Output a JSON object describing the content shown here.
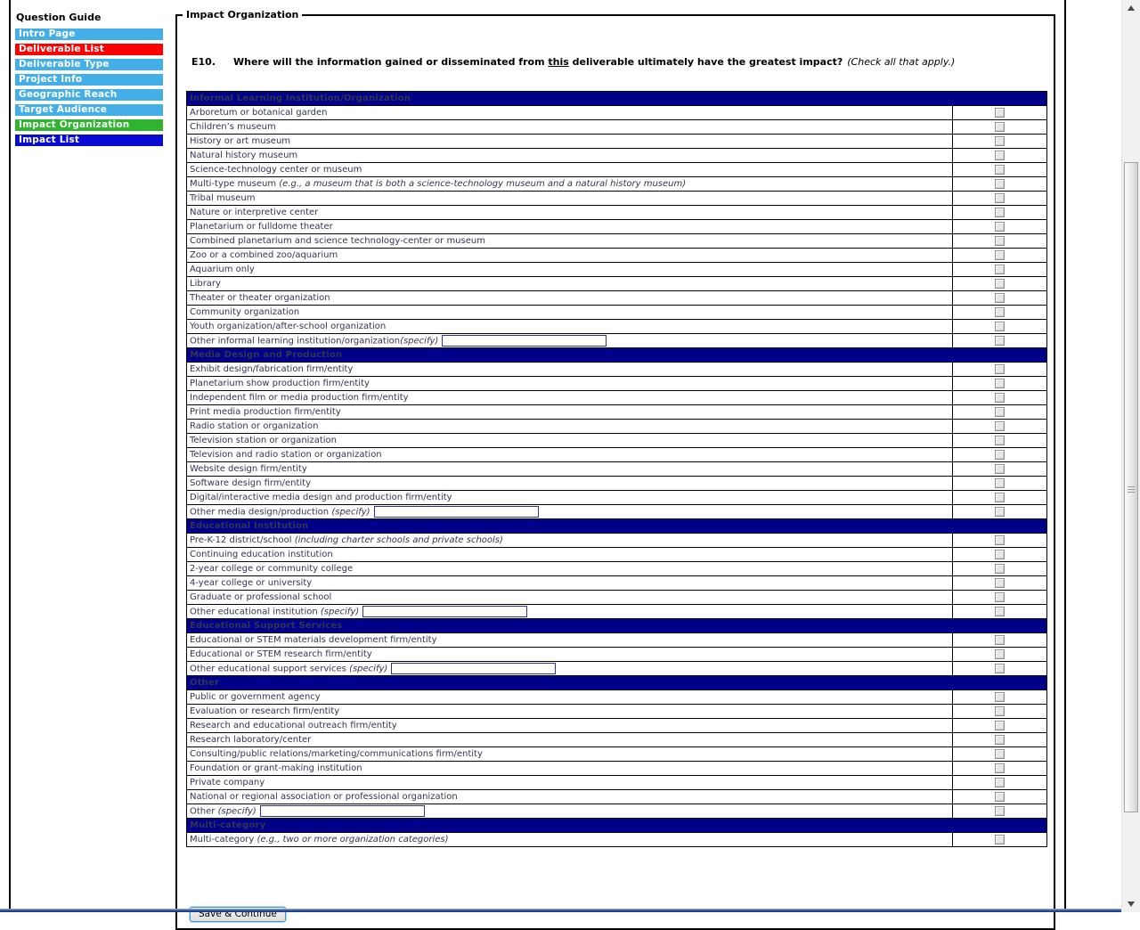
{
  "sidebar": {
    "title": "Question Guide",
    "items": [
      {
        "label": "Intro Page",
        "color": "#44AEE9"
      },
      {
        "label": "Deliverable List",
        "color": "#FF0000"
      },
      {
        "label": "Deliverable Type",
        "color": "#44AEE9"
      },
      {
        "label": "Project Info",
        "color": "#44AEE9"
      },
      {
        "label": "Geographic Reach",
        "color": "#44AEE9"
      },
      {
        "label": "Target Audience",
        "color": "#44AEE9"
      },
      {
        "label": "Impact Organization",
        "color": "#2EB42E"
      },
      {
        "label": "Impact List",
        "color": "#0A0AD5"
      }
    ]
  },
  "main": {
    "legend": "Impact Organization",
    "question": {
      "number": "E10.",
      "text_before": "Where will the information gained or disseminated from ",
      "underlined": "this",
      "text_after": " deliverable ultimately have the greatest impact?",
      "note": "(Check all that apply.)"
    },
    "table": {
      "header_color": "#00008B",
      "sections": [
        {
          "header": "Informal Learning Institution/Organization",
          "rows": [
            {
              "label": "Arboretum or botanical garden"
            },
            {
              "label": "Children’s museum"
            },
            {
              "label": "History or art museum"
            },
            {
              "label": "Natural history museum"
            },
            {
              "label": "Science-technology center or museum"
            },
            {
              "label": "Multi-type museum ",
              "note": "(e.g., a museum that is both a science-technology museum and a natural history museum)"
            },
            {
              "label": "Tribal museum"
            },
            {
              "label": "Nature or interpretive center"
            },
            {
              "label": "Planetarium or fulldome theater"
            },
            {
              "label": "Combined planetarium and science technology-center or museum"
            },
            {
              "label": "Zoo or a combined zoo/aquarium"
            },
            {
              "label": "Aquarium only"
            },
            {
              "label": "Library"
            },
            {
              "label": "Theater or theater organization"
            },
            {
              "label": "Community organization"
            },
            {
              "label": "Youth organization/after-school organization"
            },
            {
              "label": "Other informal learning institution/organization",
              "note": "(specify)",
              "input": true
            }
          ]
        },
        {
          "header": "Media Design and Production",
          "rows": [
            {
              "label": "Exhibit design/fabrication firm/entity"
            },
            {
              "label": "Planetarium show production firm/entity"
            },
            {
              "label": "Independent film or media production firm/entity"
            },
            {
              "label": "Print media production firm/entity"
            },
            {
              "label": "Radio station or organization"
            },
            {
              "label": "Television station or organization"
            },
            {
              "label": "Television and radio station or organization"
            },
            {
              "label": "Website design firm/entity"
            },
            {
              "label": "Software design firm/entity"
            },
            {
              "label": "Digital/interactive media design and production firm/entity"
            },
            {
              "label": "Other media design/production ",
              "note": "(specify)",
              "input": true
            }
          ]
        },
        {
          "header": "Educational Institution",
          "rows": [
            {
              "label": "Pre-K-12 district/school ",
              "note": "(including charter schools and private schools)"
            },
            {
              "label": "Continuing education institution"
            },
            {
              "label": "2-year college or community college"
            },
            {
              "label": "4-year college or university"
            },
            {
              "label": "Graduate or professional school"
            },
            {
              "label": "Other educational institution ",
              "note": "(specify)",
              "input": true
            }
          ]
        },
        {
          "header": "Educational Support Services",
          "rows": [
            {
              "label": "Educational or STEM materials development firm/entity"
            },
            {
              "label": "Educational or STEM research firm/entity"
            },
            {
              "label": "Other educational support services ",
              "note": "(specify)",
              "input": true
            }
          ]
        },
        {
          "header": "Other",
          "rows": [
            {
              "label": "Public or government agency"
            },
            {
              "label": "Evaluation or research firm/entity"
            },
            {
              "label": "Research and educational outreach firm/entity"
            },
            {
              "label": "Research laboratory/center"
            },
            {
              "label": "Consulting/public relations/marketing/communications firm/entity"
            },
            {
              "label": "Foundation or grant-making institution"
            },
            {
              "label": "Private company"
            },
            {
              "label": "National or regional association or professional organization"
            },
            {
              "label": "Other ",
              "note": "(specify)",
              "input": true
            }
          ]
        },
        {
          "header": "Multi-category",
          "rows": [
            {
              "label": "Multi-category ",
              "note": "(e.g., two or more organization categories)"
            }
          ]
        }
      ]
    },
    "save_button": "Save & Continue"
  }
}
